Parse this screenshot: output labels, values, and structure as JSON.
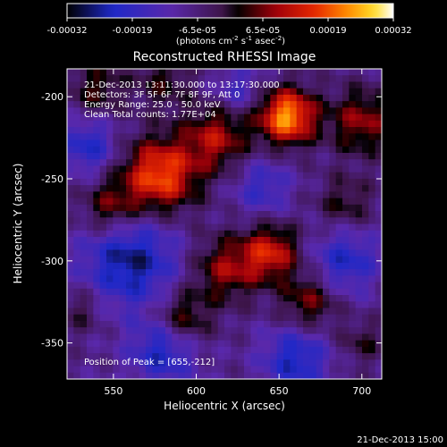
{
  "chart_data": {
    "type": "heatmap",
    "title": "Reconstructed RHESSI Image",
    "xlabel": "Heliocentric X (arcsec)",
    "ylabel": "Heliocentric Y (arcsec)",
    "xlim": [
      522,
      712
    ],
    "ylim": [
      -372,
      -183
    ],
    "x_ticks": [
      550,
      600,
      650,
      700
    ],
    "y_ticks": [
      -200,
      -250,
      -300,
      -350
    ],
    "colorbar": {
      "colormap": "black-blue-purple-red-orange-yellow-white",
      "range": [
        -0.00032,
        0.00032
      ],
      "tick_labels": [
        "-0.00032",
        "-0.00019",
        "-6.5e-05",
        "6.5e-05",
        "0.00019",
        "0.00032"
      ],
      "units_label": "(photons cm",
      "units_exp1": "-2",
      "units_mid": " s",
      "units_exp2": "-1",
      "units_mid2": " asec",
      "units_exp3": "-2",
      "units_end": ")"
    },
    "info_lines": [
      "21-Dec-2013 13:11:30.000 to 13:17:30.000",
      "Detectors: 3F 5F 6F 7F 8F 9F, Att 0",
      "Energy Range: 25.0 - 50.0 keV",
      "Clean     Total counts: 1.77E+04"
    ],
    "peak_label": "Position of Peak = [655,-212]",
    "peak_position": [
      655,
      -212
    ],
    "sources": [
      {
        "x": 655,
        "y": -212,
        "amplitude": 1.0,
        "sigma": 12
      },
      {
        "x": 578,
        "y": -248,
        "amplitude": 0.85,
        "sigma": 16
      },
      {
        "x": 612,
        "y": -225,
        "amplitude": 0.55,
        "sigma": 14
      },
      {
        "x": 548,
        "y": -268,
        "amplitude": 0.45,
        "sigma": 12
      },
      {
        "x": 645,
        "y": -295,
        "amplitude": 0.65,
        "sigma": 12
      },
      {
        "x": 618,
        "y": -305,
        "amplitude": 0.5,
        "sigma": 14
      },
      {
        "x": 592,
        "y": -335,
        "amplitude": 0.45,
        "sigma": 12
      },
      {
        "x": 668,
        "y": -325,
        "amplitude": 0.45,
        "sigma": 12
      },
      {
        "x": 700,
        "y": -215,
        "amplitude": 0.5,
        "sigma": 14
      },
      {
        "x": 690,
        "y": -265,
        "amplitude": 0.3,
        "sigma": 12
      },
      {
        "x": 540,
        "y": -195,
        "amplitude": 0.35,
        "sigma": 12
      },
      {
        "x": 580,
        "y": -190,
        "amplitude": 0.3,
        "sigma": 12
      },
      {
        "x": 530,
        "y": -330,
        "amplitude": 0.25,
        "sigma": 10
      },
      {
        "x": 700,
        "y": -350,
        "amplitude": 0.25,
        "sigma": 10
      }
    ],
    "sinks": [
      {
        "x": 560,
        "y": -300,
        "amplitude": 0.6,
        "sigma": 20
      },
      {
        "x": 580,
        "y": -355,
        "amplitude": 0.5,
        "sigma": 14
      },
      {
        "x": 660,
        "y": -360,
        "amplitude": 0.5,
        "sigma": 14
      },
      {
        "x": 690,
        "y": -300,
        "amplitude": 0.45,
        "sigma": 14
      },
      {
        "x": 535,
        "y": -230,
        "amplitude": 0.45,
        "sigma": 12
      },
      {
        "x": 640,
        "y": -255,
        "amplitude": 0.35,
        "sigma": 12
      },
      {
        "x": 625,
        "y": -195,
        "amplitude": 0.3,
        "sigma": 10
      }
    ]
  },
  "footer": {
    "timestamp": "21-Dec-2013 15:00"
  }
}
